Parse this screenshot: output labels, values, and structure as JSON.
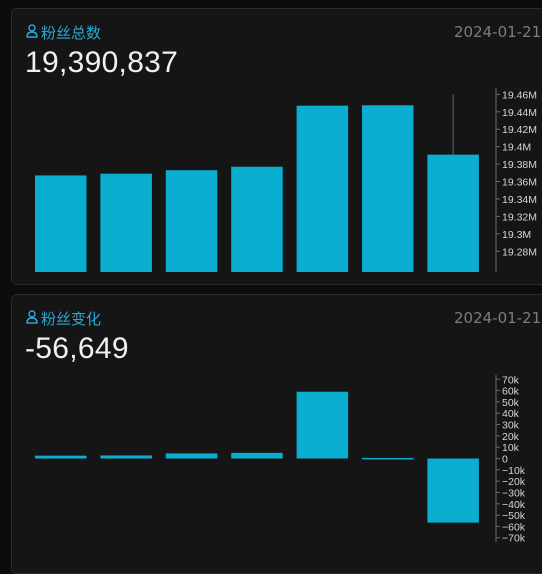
{
  "colors": {
    "accent": "#2aa7d6",
    "bar": "#0aaed0",
    "background": "#151515"
  },
  "panels": [
    {
      "icon": "user-icon",
      "label": "粉丝总数",
      "date": "2024-01-21",
      "value": "19,390,837"
    },
    {
      "icon": "user-icon",
      "label": "粉丝变化",
      "date": "2024-01-21",
      "value": "-56,649"
    }
  ],
  "chart_data": [
    {
      "type": "bar",
      "categories": [
        "",
        "",
        "",
        "",
        "",
        "",
        ""
      ],
      "values": [
        19367000,
        19369000,
        19373000,
        19377000,
        19447000,
        19447500,
        19390837
      ],
      "error_bar": {
        "index": 6,
        "high": 19460000
      },
      "ylim": [
        19270000,
        19465000
      ],
      "yticks": [
        19280000,
        19300000,
        19320000,
        19340000,
        19360000,
        19380000,
        19400000,
        19420000,
        19440000,
        19460000
      ],
      "ytick_labels": [
        "19.28M",
        "19.3M",
        "19.32M",
        "19.34M",
        "19.36M",
        "19.38M",
        "19.4M",
        "19.42M",
        "19.44M",
        "19.46M"
      ],
      "axis_position": "right",
      "grid": false
    },
    {
      "type": "bar",
      "categories": [
        "",
        "",
        "",
        "",
        "",
        "",
        ""
      ],
      "values": [
        2500,
        2700,
        4500,
        5000,
        59000,
        500,
        -56649
      ],
      "ylim": [
        -72000,
        72000
      ],
      "yticks": [
        70000,
        60000,
        50000,
        40000,
        30000,
        20000,
        10000,
        0,
        -10000,
        -20000,
        -30000,
        -40000,
        -50000,
        -60000,
        -70000
      ],
      "ytick_labels": [
        "70k",
        "60k",
        "50k",
        "40k",
        "30k",
        "20k",
        "10k",
        "0",
        "−10k",
        "−20k",
        "−30k",
        "−40k",
        "−50k",
        "−60k",
        "−70k"
      ],
      "axis_position": "right",
      "grid": false
    }
  ]
}
